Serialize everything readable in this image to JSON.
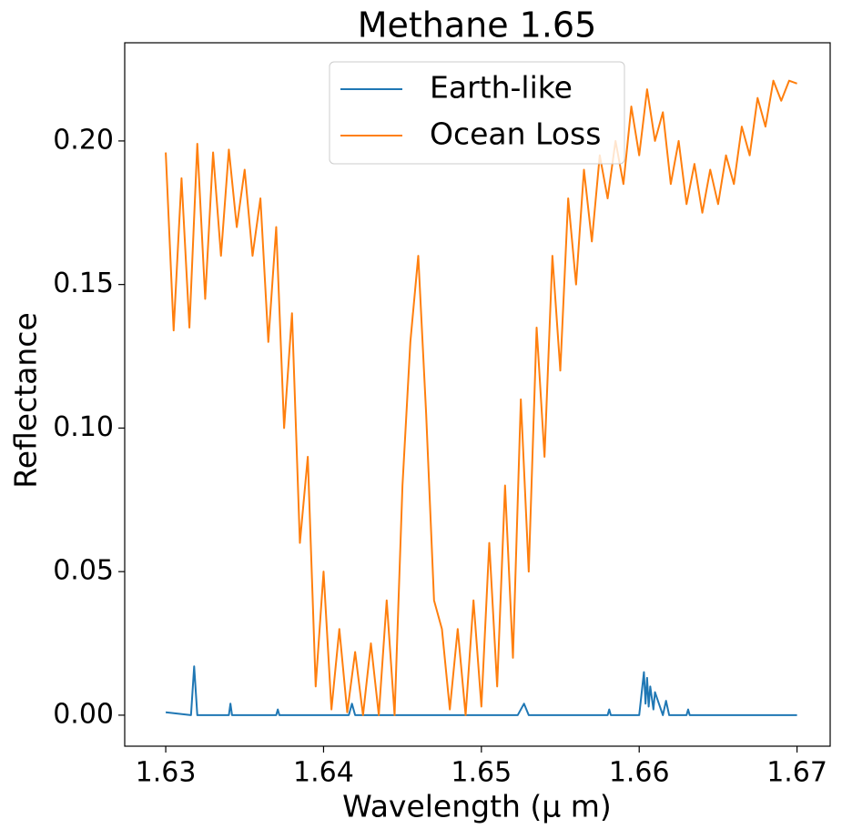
{
  "chart_data": {
    "type": "line",
    "title": "Methane 1.65",
    "xlabel": "Wavelength (μ m)",
    "ylabel": "Reflectance",
    "xlim": [
      1.6274,
      1.6721
    ],
    "ylim": [
      -0.0108,
      0.2342
    ],
    "xticks": [
      1.63,
      1.64,
      1.65,
      1.66,
      1.67
    ],
    "yticks": [
      {
        "value": 0,
        "label": "0.00"
      },
      {
        "value": 0.05,
        "label": "0.05"
      },
      {
        "value": 0.1,
        "label": "0.10"
      },
      {
        "value": 0.15,
        "label": "0.15"
      },
      {
        "value": 0.2,
        "label": "0.20"
      }
    ],
    "legend": "upper center",
    "series": [
      {
        "name": "Earth-like",
        "color": "#1f77b4",
        "x": [
          1.63,
          1.6316,
          1.6318,
          1.632,
          1.634,
          1.6341,
          1.6342,
          1.637,
          1.6371,
          1.6372,
          1.6416,
          1.6418,
          1.642,
          1.6523,
          1.6527,
          1.653,
          1.658,
          1.6581,
          1.6582,
          1.66,
          1.6603,
          1.6604,
          1.6605,
          1.6606,
          1.6607,
          1.6609,
          1.661,
          1.6615,
          1.6617,
          1.6619,
          1.663,
          1.6631,
          1.6632,
          1.67
        ],
        "values": [
          0.001,
          0,
          0.017,
          0,
          0,
          0.004,
          0,
          0,
          0.002,
          0,
          0,
          0.004,
          0,
          0,
          0.004,
          0,
          0,
          0.002,
          0,
          0,
          0.015,
          0.004,
          0.013,
          0.003,
          0.01,
          0.002,
          0.008,
          0,
          0.005,
          0,
          0,
          0.002,
          0,
          0
        ]
      },
      {
        "name": "Ocean Loss",
        "color": "#ff7f0e",
        "x": [
          1.63,
          1.6305,
          1.631,
          1.6315,
          1.632,
          1.6325,
          1.633,
          1.6335,
          1.634,
          1.6345,
          1.635,
          1.6355,
          1.636,
          1.6365,
          1.637,
          1.6375,
          1.638,
          1.6385,
          1.639,
          1.6395,
          1.64,
          1.6405,
          1.641,
          1.6415,
          1.642,
          1.6425,
          1.643,
          1.6435,
          1.644,
          1.6445,
          1.645,
          1.6455,
          1.646,
          1.6465,
          1.647,
          1.6475,
          1.648,
          1.6485,
          1.649,
          1.6495,
          1.65,
          1.6505,
          1.651,
          1.6515,
          1.652,
          1.6525,
          1.653,
          1.6535,
          1.654,
          1.6545,
          1.655,
          1.6555,
          1.656,
          1.6565,
          1.657,
          1.6575,
          1.658,
          1.6585,
          1.659,
          1.6595,
          1.66,
          1.6605,
          1.661,
          1.6615,
          1.662,
          1.6625,
          1.663,
          1.6635,
          1.664,
          1.6645,
          1.665,
          1.6655,
          1.666,
          1.6665,
          1.667,
          1.6675,
          1.668,
          1.6685,
          1.669,
          1.6695,
          1.67
        ],
        "values": [
          0.196,
          0.134,
          0.187,
          0.135,
          0.199,
          0.145,
          0.196,
          0.16,
          0.197,
          0.17,
          0.19,
          0.16,
          0.18,
          0.13,
          0.17,
          0.1,
          0.14,
          0.06,
          0.09,
          0.01,
          0.05,
          0.002,
          0.03,
          0.001,
          0.022,
          0.0,
          0.025,
          0.0,
          0.04,
          0.0,
          0.08,
          0.13,
          0.16,
          0.105,
          0.04,
          0.03,
          0.002,
          0.03,
          0.0,
          0.04,
          0.003,
          0.06,
          0.01,
          0.08,
          0.02,
          0.11,
          0.05,
          0.135,
          0.09,
          0.16,
          0.12,
          0.18,
          0.15,
          0.19,
          0.165,
          0.195,
          0.18,
          0.2,
          0.185,
          0.212,
          0.195,
          0.218,
          0.2,
          0.21,
          0.185,
          0.2,
          0.178,
          0.192,
          0.175,
          0.19,
          0.178,
          0.195,
          0.185,
          0.205,
          0.195,
          0.215,
          0.205,
          0.221,
          0.214,
          0.221,
          0.22
        ]
      }
    ]
  }
}
